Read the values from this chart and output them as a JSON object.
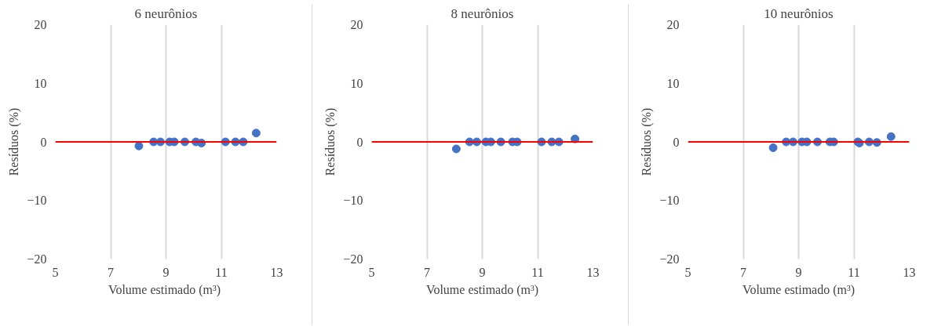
{
  "chart_data": [
    {
      "type": "scatter",
      "title": "6 neurônios",
      "xlabel": "Volume  estimado (m³)",
      "ylabel": "Resíduos (%)",
      "xlim": [
        5,
        13
      ],
      "xticks": [
        5,
        7,
        9,
        11,
        13
      ],
      "ylim": [
        -20,
        20
      ],
      "yticks": [
        -20,
        -10,
        0,
        10,
        20
      ],
      "grid": "x",
      "marker": "circle",
      "ref_lines": [
        {
          "axis": "y",
          "value": 0,
          "color": "#ff0000"
        }
      ],
      "series": [
        {
          "color": "#4472c4",
          "x": [
            8.02,
            8.55,
            8.8,
            9.13,
            9.3,
            9.68,
            10.08,
            10.28,
            11.15,
            11.51,
            11.79,
            12.26
          ],
          "values": [
            -0.7,
            0,
            0,
            0,
            0,
            0,
            0,
            -0.2,
            0,
            0,
            0,
            1.5
          ]
        }
      ]
    },
    {
      "type": "scatter",
      "title": "8 neurônios",
      "xlabel": "Volume estimado (m³)",
      "ylabel": "Resíduos (%)",
      "xlim": [
        5,
        13
      ],
      "xticks": [
        5,
        7,
        9,
        11,
        13
      ],
      "ylim": [
        -20,
        20
      ],
      "yticks": [
        -20,
        -10,
        0,
        10,
        20
      ],
      "grid": "x",
      "marker": "circle",
      "ref_lines": [
        {
          "axis": "y",
          "value": 0,
          "color": "#ff0000"
        }
      ],
      "series": [
        {
          "color": "#4472c4",
          "x": [
            8.06,
            8.54,
            8.8,
            9.13,
            9.31,
            9.67,
            10.09,
            10.26,
            11.14,
            11.51,
            11.77,
            12.35
          ],
          "values": [
            -1.2,
            0,
            0,
            0,
            0,
            0,
            0,
            0,
            0,
            0,
            0,
            0.5
          ]
        }
      ]
    },
    {
      "type": "scatter",
      "title": "10 neurônios",
      "xlabel": "Volume estimado (m³)",
      "ylabel": "Resíduos (%)",
      "xlim": [
        5,
        13
      ],
      "xticks": [
        5,
        7,
        9,
        11,
        13
      ],
      "ylim": [
        -20,
        20
      ],
      "yticks": [
        -20,
        -10,
        0,
        10,
        20
      ],
      "grid": "x",
      "marker": "circle",
      "ref_lines": [
        {
          "axis": "y",
          "value": 0,
          "color": "#ff0000"
        }
      ],
      "series": [
        {
          "color": "#4472c4",
          "x": [
            8.08,
            8.55,
            8.8,
            9.12,
            9.3,
            9.68,
            10.13,
            10.27,
            11.14,
            11.2,
            11.55,
            11.83,
            12.34
          ],
          "values": [
            -1.0,
            0,
            0,
            0,
            0,
            0,
            0,
            0,
            0,
            -0.2,
            0,
            -0.1,
            0.9
          ]
        }
      ]
    }
  ]
}
